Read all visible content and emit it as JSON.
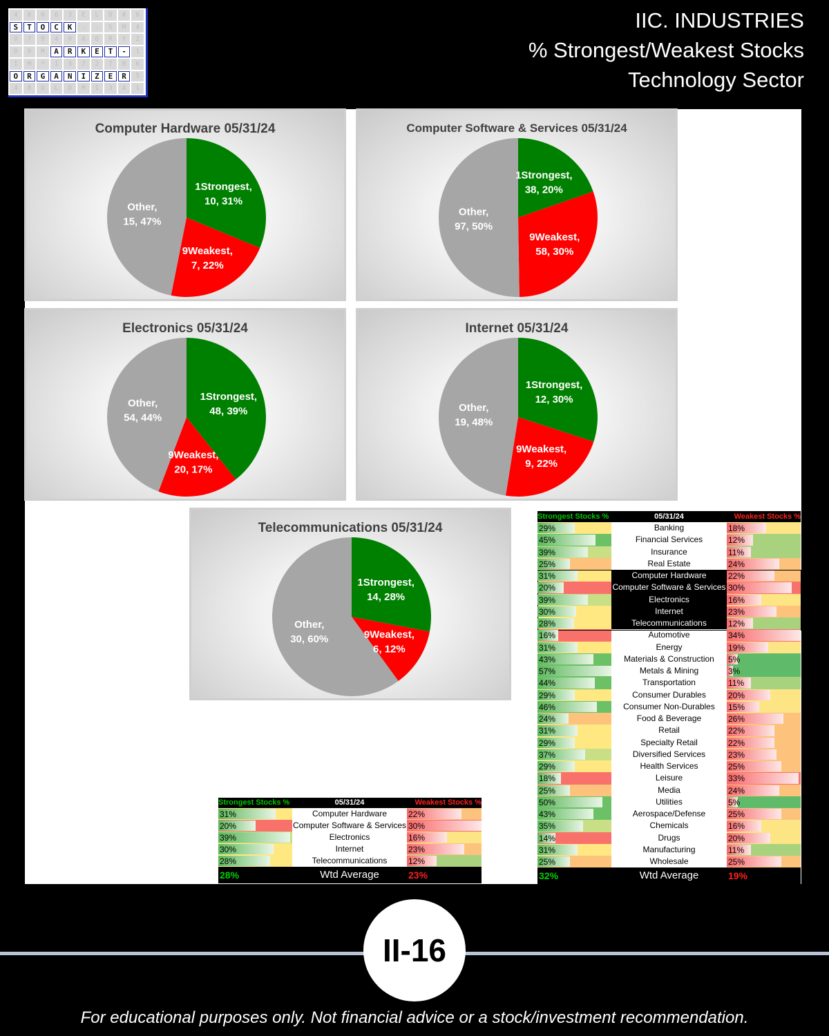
{
  "header": {
    "line1": "IIC. INDUSTRIES",
    "line2": "% Strongest/Weakest Stocks",
    "line3": "Technology Sector"
  },
  "logo": {
    "rows": [
      [
        "4",
        "8",
        "0",
        "6",
        "3",
        "E",
        "L",
        "D",
        "#",
        "6"
      ],
      [
        "S",
        "T",
        "O",
        "C",
        "K",
        "-",
        "-",
        "S",
        "M",
        "4"
      ],
      [
        "V",
        "7",
        "9",
        "4",
        "0",
        "A",
        "Q",
        "R",
        "Y",
        "2"
      ],
      [
        "D",
        "9",
        "M",
        "A",
        "R",
        "K",
        "E",
        "T",
        "-",
        "1"
      ],
      [
        "I",
        "M",
        "*",
        "I",
        "3",
        "7",
        "2",
        "7",
        "B",
        "6"
      ],
      [
        "O",
        "R",
        "G",
        "A",
        "N",
        "I",
        "Z",
        "E",
        "R",
        "5"
      ],
      [
        "4",
        "8",
        "U",
        "L",
        "D",
        "M",
        "I",
        "3",
        "4",
        "1"
      ]
    ],
    "highlight": [
      [
        1,
        0
      ],
      [
        1,
        1
      ],
      [
        1,
        2
      ],
      [
        1,
        3
      ],
      [
        1,
        4
      ],
      [
        3,
        3
      ],
      [
        3,
        4
      ],
      [
        3,
        5
      ],
      [
        3,
        6
      ],
      [
        3,
        7
      ],
      [
        3,
        8
      ],
      [
        5,
        0
      ],
      [
        5,
        1
      ],
      [
        5,
        2
      ],
      [
        5,
        3
      ],
      [
        5,
        4
      ],
      [
        5,
        5
      ],
      [
        5,
        6
      ],
      [
        5,
        7
      ],
      [
        5,
        8
      ]
    ]
  },
  "colors": {
    "strongest": "#008000",
    "weakest": "#ff0000",
    "other": "#a6a6a6"
  },
  "chart_data": [
    {
      "type": "pie",
      "title": "Computer Hardware 05/31/24",
      "slices": [
        {
          "name": "1Strongest",
          "value": 10,
          "pct": "31%"
        },
        {
          "name": "9Weakest",
          "value": 7,
          "pct": "22%"
        },
        {
          "name": "Other",
          "value": 15,
          "pct": "47%"
        }
      ]
    },
    {
      "type": "pie",
      "title": "Computer Software & Services 05/31/24",
      "slices": [
        {
          "name": "1Strongest",
          "value": 38,
          "pct": "20%"
        },
        {
          "name": "9Weakest",
          "value": 58,
          "pct": "30%"
        },
        {
          "name": "Other",
          "value": 97,
          "pct": "50%"
        }
      ]
    },
    {
      "type": "pie",
      "title": "Electronics 05/31/24",
      "slices": [
        {
          "name": "1Strongest",
          "value": 48,
          "pct": "39%"
        },
        {
          "name": "9Weakest",
          "value": 20,
          "pct": "17%"
        },
        {
          "name": "Other",
          "value": 54,
          "pct": "44%"
        }
      ]
    },
    {
      "type": "pie",
      "title": "Internet 05/31/24",
      "slices": [
        {
          "name": "1Strongest",
          "value": 12,
          "pct": "30%"
        },
        {
          "name": "9Weakest",
          "value": 9,
          "pct": "22%"
        },
        {
          "name": "Other",
          "value": 19,
          "pct": "48%"
        }
      ]
    },
    {
      "type": "pie",
      "title": "Telecommunications 05/31/24",
      "slices": [
        {
          "name": "1Strongest",
          "value": 14,
          "pct": "28%"
        },
        {
          "name": "9Weakest",
          "value": 6,
          "pct": "12%"
        },
        {
          "name": "Other",
          "value": 30,
          "pct": "60%"
        }
      ]
    },
    {
      "type": "table",
      "name": "sector-table",
      "header": {
        "strong": "Strongest Stocks %",
        "date": "05/31/24",
        "weak": "Weakest Stocks %"
      },
      "rows": [
        {
          "label": "Computer Hardware",
          "strong": 31,
          "weak": 22
        },
        {
          "label": "Computer Software & Services",
          "strong": 20,
          "weak": 30
        },
        {
          "label": "Electronics",
          "strong": 39,
          "weak": 16
        },
        {
          "label": "Internet",
          "strong": 30,
          "weak": 23
        },
        {
          "label": "Telecommunications",
          "strong": 28,
          "weak": 12
        }
      ],
      "footer": {
        "strong": "28%",
        "label": "Wtd Average",
        "weak": "23%"
      }
    },
    {
      "type": "table",
      "name": "industry-table",
      "header": {
        "strong": "Strongest Stocks %",
        "date": "05/31/24",
        "weak": "Weakest Stocks %"
      },
      "rows": [
        {
          "label": "Banking",
          "strong": 29,
          "weak": 18
        },
        {
          "label": "Financial Services",
          "strong": 45,
          "weak": 12
        },
        {
          "label": "Insurance",
          "strong": 39,
          "weak": 11
        },
        {
          "label": "Real Estate",
          "strong": 25,
          "weak": 24
        },
        {
          "label": "Computer Hardware",
          "strong": 31,
          "weak": 22
        },
        {
          "label": "Computer Software & Services",
          "strong": 20,
          "weak": 30
        },
        {
          "label": "Electronics",
          "strong": 39,
          "weak": 16
        },
        {
          "label": "Internet",
          "strong": 30,
          "weak": 23
        },
        {
          "label": "Telecommunications",
          "strong": 28,
          "weak": 12
        },
        {
          "label": "Automotive",
          "strong": 16,
          "weak": 34
        },
        {
          "label": "Energy",
          "strong": 31,
          "weak": 19
        },
        {
          "label": "Materials & Construction",
          "strong": 43,
          "weak": 5
        },
        {
          "label": "Metals & Mining",
          "strong": 57,
          "weak": 3
        },
        {
          "label": "Transportation",
          "strong": 44,
          "weak": 11
        },
        {
          "label": "Consumer Durables",
          "strong": 29,
          "weak": 20
        },
        {
          "label": "Consumer Non-Durables",
          "strong": 46,
          "weak": 15
        },
        {
          "label": "Food & Beverage",
          "strong": 24,
          "weak": 26
        },
        {
          "label": "Retail",
          "strong": 31,
          "weak": 22
        },
        {
          "label": "Specialty Retail",
          "strong": 29,
          "weak": 22
        },
        {
          "label": "Diversified Services",
          "strong": 37,
          "weak": 23
        },
        {
          "label": "Health Services",
          "strong": 29,
          "weak": 25
        },
        {
          "label": "Leisure",
          "strong": 18,
          "weak": 33
        },
        {
          "label": "Media",
          "strong": 25,
          "weak": 24
        },
        {
          "label": "Utilities",
          "strong": 50,
          "weak": 5
        },
        {
          "label": "Aerospace/Defense",
          "strong": 43,
          "weak": 25
        },
        {
          "label": "Chemicals",
          "strong": 35,
          "weak": 16
        },
        {
          "label": "Drugs",
          "strong": 14,
          "weak": 20
        },
        {
          "label": "Manufacturing",
          "strong": 31,
          "weak": 11
        },
        {
          "label": "Wholesale",
          "strong": 25,
          "weak": 25
        }
      ],
      "footer": {
        "strong": "32%",
        "label": "Wtd Average",
        "weak": "19%"
      }
    }
  ],
  "footer": {
    "page_number": "II-16",
    "disclaimer": "For educational purposes only. Not financial advice or a stock/investment recommendation."
  }
}
